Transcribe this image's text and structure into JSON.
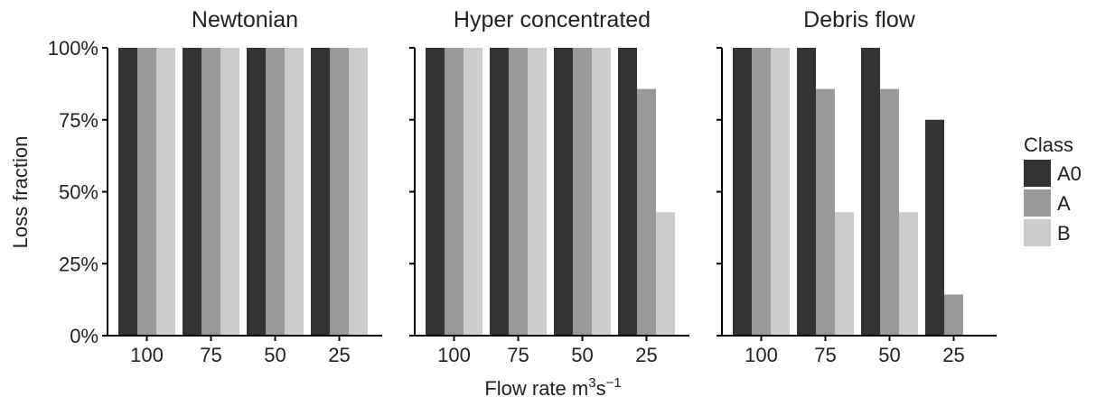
{
  "chart_data": {
    "type": "bar",
    "ylabel": "Loss fraction",
    "xlabel": "Flow rate m",
    "xlabel_sup1": "3",
    "xlabel_mid": "s",
    "xlabel_sup2": "−1",
    "y_ticks": [
      "0%",
      "25%",
      "50%",
      "75%",
      "100%"
    ],
    "ylim": [
      0,
      1
    ],
    "legend": {
      "title": "Class",
      "placement": "right",
      "items": [
        {
          "label": "A0",
          "color": "#333333"
        },
        {
          "label": "A",
          "color": "#999999"
        },
        {
          "label": "B",
          "color": "#cccccc"
        }
      ]
    },
    "categories": [
      "100",
      "75",
      "50",
      "25"
    ],
    "panels": [
      {
        "title": "Newtonian",
        "series": [
          {
            "name": "A0",
            "values": [
              1.0,
              1.0,
              1.0,
              1.0
            ]
          },
          {
            "name": "A",
            "values": [
              1.0,
              1.0,
              1.0,
              1.0
            ]
          },
          {
            "name": "B",
            "values": [
              1.0,
              1.0,
              1.0,
              1.0
            ]
          }
        ]
      },
      {
        "title": "Hyper concentrated",
        "series": [
          {
            "name": "A0",
            "values": [
              1.0,
              1.0,
              1.0,
              1.0
            ]
          },
          {
            "name": "A",
            "values": [
              1.0,
              1.0,
              1.0,
              0.857
            ]
          },
          {
            "name": "B",
            "values": [
              1.0,
              1.0,
              1.0,
              0.429
            ]
          }
        ]
      },
      {
        "title": "Debris flow",
        "series": [
          {
            "name": "A0",
            "values": [
              1.0,
              1.0,
              1.0,
              0.75
            ]
          },
          {
            "name": "A",
            "values": [
              1.0,
              0.857,
              0.857,
              0.143
            ]
          },
          {
            "name": "B",
            "values": [
              1.0,
              0.429,
              0.429,
              0
            ]
          }
        ]
      }
    ]
  }
}
